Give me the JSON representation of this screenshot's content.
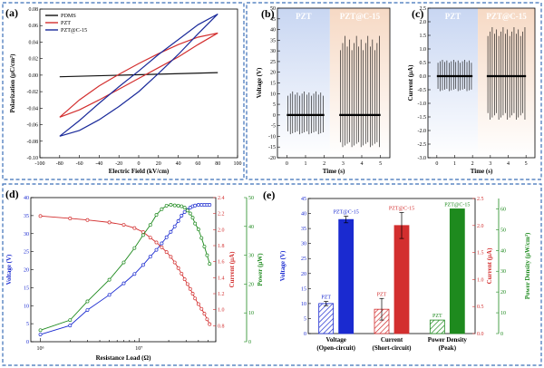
{
  "chart_data": [
    {
      "id": "a",
      "panel_label": "(a)",
      "type": "line",
      "title": "",
      "xlabel": "Electric Field (kV/cm)",
      "ylabel": "Polarization (μC/cm²)",
      "xlim": [
        -100,
        100
      ],
      "ylim": [
        -0.1,
        0.08
      ],
      "xticks": [
        "-100",
        "-80",
        "-60",
        "-40",
        "-20",
        "0",
        "20",
        "40",
        "60",
        "80",
        "100"
      ],
      "yticks": [
        "-0.10",
        "-0.08",
        "-0.06",
        "-0.04",
        "-0.02",
        "0.00",
        "0.02",
        "0.04",
        "0.06",
        "0.08"
      ],
      "series": [
        {
          "name": "PDMS",
          "color": "#111111",
          "x": [
            -80,
            80
          ],
          "y": [
            -0.002,
            0.003
          ]
        },
        {
          "name": "PZT",
          "color": "#d32f2f",
          "x": [
            -80,
            -60,
            -40,
            -20,
            0,
            20,
            40,
            60,
            80,
            60,
            40,
            20,
            0,
            -20,
            -40,
            -60,
            -80
          ],
          "y": [
            -0.051,
            -0.042,
            -0.03,
            -0.017,
            -0.004,
            0.009,
            0.022,
            0.037,
            0.051,
            0.046,
            0.037,
            0.026,
            0.014,
            0.001,
            -0.013,
            -0.03,
            -0.051
          ]
        },
        {
          "name": "PZT@C-15",
          "color": "#1a2a9a",
          "x": [
            -80,
            -60,
            -40,
            -20,
            0,
            20,
            40,
            60,
            80,
            60,
            40,
            20,
            0,
            -20,
            -40,
            -60,
            -80
          ],
          "y": [
            -0.074,
            -0.067,
            -0.054,
            -0.038,
            -0.02,
            0.002,
            0.025,
            0.05,
            0.074,
            0.061,
            0.043,
            0.025,
            0.005,
            -0.014,
            -0.034,
            -0.055,
            -0.074
          ]
        }
      ],
      "legend": "top-left"
    },
    {
      "id": "b",
      "panel_label": "(b)",
      "type": "line",
      "xlabel": "Time (s)",
      "ylabel": "Voltage (V)",
      "xlim": [
        -0.5,
        5.5
      ],
      "ylim": [
        -20,
        50
      ],
      "xticks": [
        "0",
        "1",
        "2",
        "3",
        "4",
        "5"
      ],
      "yticks": [
        "-20",
        "-15",
        "-10",
        "-5",
        "0",
        "5",
        "10",
        "15",
        "20",
        "25",
        "30",
        "35",
        "40",
        "45",
        "50"
      ],
      "segments": [
        {
          "name": "PZT",
          "x_range": [
            0,
            2
          ],
          "upper": 11,
          "lower": -9,
          "baseline": 0,
          "pulses": 16,
          "bg": "#c8d6f2"
        },
        {
          "name": "PZT@C-15",
          "x_range": [
            2.8,
            5
          ],
          "upper": 37,
          "lower": -15,
          "baseline": 0,
          "pulses": 18,
          "bg": "#f6d9c4"
        }
      ]
    },
    {
      "id": "c",
      "panel_label": "(c)",
      "type": "line",
      "xlabel": "Time (s)",
      "ylabel": "Current (μA)",
      "xlim": [
        -0.5,
        5.5
      ],
      "ylim": [
        -3.0,
        2.5
      ],
      "xticks": [
        "0",
        "1",
        "2",
        "3",
        "4",
        "5"
      ],
      "yticks": [
        "-3.0",
        "-2.5",
        "-2.0",
        "-1.5",
        "-1.0",
        "-0.5",
        "0.0",
        "0.5",
        "1.0",
        "1.5",
        "2.0",
        "2.5"
      ],
      "segments": [
        {
          "name": "PZT",
          "x_range": [
            0,
            2
          ],
          "upper": 0.6,
          "lower": -0.55,
          "baseline": 0,
          "pulses": 16,
          "bg": "#c8d6f2"
        },
        {
          "name": "PZT@C-15",
          "x_range": [
            2.8,
            5
          ],
          "upper": 1.8,
          "lower": -1.6,
          "baseline": 0,
          "pulses": 18,
          "bg": "#f6d9c4"
        }
      ]
    },
    {
      "id": "d",
      "panel_label": "(d)",
      "type": "line",
      "xlabel": "Resistance Load (Ω)",
      "xscale": "log",
      "xlim": [
        800000.0,
        60000000.0
      ],
      "xtick_values": [
        1000000,
        10000000
      ],
      "xticks": [
        "10⁶",
        "10⁷"
      ],
      "y_axes": [
        {
          "label": "Voltage (V)",
          "color": "#1a2ad0",
          "range": [
            0,
            40
          ],
          "ticks": [
            "0",
            "5",
            "10",
            "15",
            "20",
            "25",
            "30",
            "35",
            "40"
          ]
        },
        {
          "label": "Current (μA)",
          "color": "#d32f2f",
          "range": [
            0.6,
            2.4
          ],
          "ticks": [
            "0.8",
            "1.0",
            "1.2",
            "1.4",
            "1.6",
            "1.8",
            "2.0",
            "2.2",
            "2.4"
          ]
        },
        {
          "label": "Power (μW)",
          "color": "#1e8a1e",
          "range": [
            0,
            50
          ],
          "ticks": [
            "0",
            "10",
            "20",
            "30",
            "40",
            "50"
          ]
        }
      ],
      "series": [
        {
          "name": "Voltage",
          "axis": 0,
          "color": "#1a2ad0",
          "x": [
            1000000,
            2000000,
            3000000,
            5000000,
            7000000,
            9000000,
            11000000,
            13000000,
            15000000,
            17000000,
            19000000,
            21000000,
            23000000,
            25000000,
            27000000,
            29000000,
            31000000,
            33000000,
            35000000,
            37000000,
            40000000,
            43000000,
            46000000,
            49000000,
            52000000
          ],
          "y": [
            2,
            4.5,
            8.8,
            13,
            16.2,
            18.8,
            21.3,
            23.6,
            25.5,
            27.3,
            29,
            30.5,
            32,
            33.5,
            35,
            36,
            36.6,
            37.2,
            37.6,
            37.8,
            38,
            38,
            38,
            38,
            38
          ]
        },
        {
          "name": "Current",
          "axis": 1,
          "color": "#d32f2f",
          "x": [
            1000000,
            2000000,
            3000000,
            5000000,
            7000000,
            9000000,
            11000000,
            13000000,
            15000000,
            17000000,
            19000000,
            21000000,
            23000000,
            25000000,
            27000000,
            29000000,
            31000000,
            33000000,
            35000000,
            37000000,
            40000000,
            43000000,
            46000000,
            49000000,
            52000000
          ],
          "y": [
            2.17,
            2.14,
            2.12,
            2.09,
            2.06,
            2.02,
            1.97,
            1.9,
            1.84,
            1.78,
            1.72,
            1.66,
            1.59,
            1.52,
            1.45,
            1.38,
            1.32,
            1.26,
            1.2,
            1.14,
            1.07,
            1.01,
            0.95,
            0.88,
            0.82
          ]
        },
        {
          "name": "Power",
          "axis": 2,
          "color": "#1e8a1e",
          "x": [
            1000000,
            2000000,
            3000000,
            5000000,
            7000000,
            9000000,
            11000000,
            13000000,
            15000000,
            17000000,
            19000000,
            21000000,
            23000000,
            25000000,
            27000000,
            29000000,
            31000000,
            33000000,
            35000000,
            37000000,
            40000000,
            43000000,
            46000000,
            49000000,
            52000000
          ],
          "y": [
            4,
            7.5,
            14,
            21.5,
            27.5,
            32.5,
            37,
            40.5,
            44,
            46,
            47.2,
            47.5,
            47.3,
            47.2,
            47,
            46.5,
            45.5,
            44.5,
            43,
            41,
            39,
            36,
            33,
            30,
            27
          ]
        }
      ]
    },
    {
      "id": "e",
      "panel_label": "(e)",
      "type": "bar",
      "categories": [
        "Voltage\n(Open-circuit)",
        "Current\n(Short-circuit)",
        "Power Density\n(Peak)"
      ],
      "y_axes": [
        {
          "label": "Voltage (V)",
          "color": "#1a2ad0",
          "range": [
            0,
            45
          ],
          "ticks": [
            "0",
            "5",
            "10",
            "15",
            "20",
            "25",
            "30",
            "35",
            "40",
            "45"
          ]
        },
        {
          "label": "Current (μA)",
          "color": "#d32f2f",
          "range": [
            0,
            2.5
          ],
          "ticks": [
            "0.0",
            "0.5",
            "1.0",
            "1.5",
            "2.0",
            "2.5"
          ]
        },
        {
          "label": "Power Density (μW/cm³)",
          "color": "#1e8a1e",
          "range": [
            0,
            65
          ],
          "ticks": [
            "0",
            "10",
            "20",
            "30",
            "40",
            "50",
            "60"
          ]
        }
      ],
      "bars": [
        {
          "category": 0,
          "name": "PZT",
          "axis": 0,
          "value": 10,
          "err": 0.7,
          "color": "#1a2ad0",
          "hatched": true
        },
        {
          "category": 0,
          "name": "PZT@C-15",
          "axis": 0,
          "value": 38,
          "err": 1.1,
          "color": "#1a2ad0",
          "hatched": false
        },
        {
          "category": 1,
          "name": "PZT",
          "axis": 1,
          "value": 0.45,
          "err": 0.2,
          "color": "#d32f2f",
          "hatched": true
        },
        {
          "category": 1,
          "name": "PZT@C-15",
          "axis": 1,
          "value": 2.0,
          "err": 0.24,
          "color": "#d32f2f",
          "hatched": false
        },
        {
          "category": 2,
          "name": "PZT",
          "axis": 2,
          "value": 6.5,
          "err": 0,
          "color": "#1e8a1e",
          "hatched": true
        },
        {
          "category": 2,
          "name": "PZT@C-15",
          "axis": 2,
          "value": 60,
          "err": 0,
          "color": "#1e8a1e",
          "hatched": false
        }
      ]
    }
  ],
  "colors": {
    "border": "#3b6fb8",
    "pzt_bg": "#c8d6f2",
    "pztc_bg": "#f6d9c4"
  }
}
